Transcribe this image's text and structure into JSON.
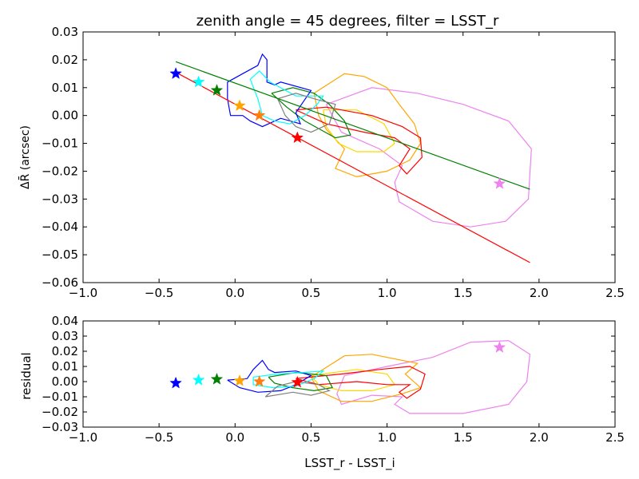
{
  "chart_data": [
    {
      "type": "line",
      "title": "zenith angle = 45 degrees, filter = LSST_r",
      "xlabel": "",
      "ylabel": "ΔR̄ (arcsec)",
      "xlim": [
        -1.0,
        2.5
      ],
      "ylim": [
        -0.06,
        0.03
      ],
      "xticks": [
        "−1.0",
        "−0.5",
        "0.0",
        "0.5",
        "1.0",
        "1.5",
        "2.0",
        "2.5"
      ],
      "xtick_values": [
        -1.0,
        -0.5,
        0.0,
        0.5,
        1.0,
        1.5,
        2.0,
        2.5
      ],
      "yticks": [
        "0.03",
        "0.02",
        "0.01",
        "0.00",
        "−0.01",
        "−0.02",
        "−0.03",
        "−0.04",
        "−0.05",
        "−0.06"
      ],
      "ytick_values": [
        0.03,
        0.02,
        0.01,
        0.0,
        -0.01,
        -0.02,
        -0.03,
        -0.04,
        -0.05,
        -0.06
      ],
      "grid": false,
      "fit_lines": [
        {
          "color": "#ff0000",
          "x": [
            -0.39,
            1.94
          ],
          "y": [
            0.0155,
            -0.0528
          ]
        },
        {
          "color": "#008000",
          "x": [
            -0.39,
            1.94
          ],
          "y": [
            0.0193,
            -0.0265
          ]
        }
      ],
      "stars": [
        {
          "color": "#0000ff",
          "x": -0.39,
          "y": 0.015
        },
        {
          "color": "#00ffff",
          "x": -0.24,
          "y": 0.012
        },
        {
          "color": "#008000",
          "x": -0.12,
          "y": 0.009
        },
        {
          "color": "#ffa500",
          "x": 0.03,
          "y": 0.0035
        },
        {
          "color": "#ff7f0e",
          "x": 0.16,
          "y": 0.0
        },
        {
          "color": "#ff0000",
          "x": 0.41,
          "y": -0.008
        },
        {
          "color": "#ee82ee",
          "x": 1.74,
          "y": -0.0245
        }
      ],
      "contours": [
        {
          "color": "#ee82ee",
          "points": [
            [
              0.6,
              0.004
            ],
            [
              0.9,
              0.01
            ],
            [
              1.2,
              0.008
            ],
            [
              1.5,
              0.004
            ],
            [
              1.8,
              -0.002
            ],
            [
              1.95,
              -0.012
            ],
            [
              1.93,
              -0.03
            ],
            [
              1.78,
              -0.038
            ],
            [
              1.55,
              -0.04
            ],
            [
              1.3,
              -0.038
            ],
            [
              1.08,
              -0.031
            ],
            [
              1.05,
              -0.024
            ],
            [
              1.1,
              -0.018
            ],
            [
              0.95,
              -0.012
            ],
            [
              0.7,
              -0.006
            ],
            [
              0.6,
              0.004
            ]
          ]
        },
        {
          "color": "#ffa500",
          "points": [
            [
              0.52,
              0.008
            ],
            [
              0.72,
              0.015
            ],
            [
              0.85,
              0.014
            ],
            [
              1.0,
              0.01
            ],
            [
              1.08,
              0.004
            ],
            [
              1.18,
              -0.003
            ],
            [
              1.22,
              -0.01
            ],
            [
              1.15,
              -0.016
            ],
            [
              1.0,
              -0.02
            ],
            [
              0.8,
              -0.022
            ],
            [
              0.66,
              -0.019
            ],
            [
              0.72,
              -0.012
            ],
            [
              0.6,
              -0.005
            ],
            [
              0.55,
              0.0
            ],
            [
              0.52,
              0.008
            ]
          ]
        },
        {
          "color": "#ffd700",
          "points": [
            [
              0.58,
              0.002
            ],
            [
              0.8,
              0.002
            ],
            [
              0.98,
              -0.003
            ],
            [
              1.05,
              -0.01
            ],
            [
              0.98,
              -0.013
            ],
            [
              0.8,
              -0.013
            ],
            [
              0.68,
              -0.01
            ],
            [
              0.6,
              -0.004
            ],
            [
              0.58,
              0.002
            ]
          ]
        },
        {
          "color": "#ff0000",
          "points": [
            [
              0.4,
              0.002
            ],
            [
              0.6,
              0.003
            ],
            [
              0.9,
              0.0
            ],
            [
              1.1,
              -0.004
            ],
            [
              1.22,
              -0.008
            ],
            [
              1.23,
              -0.015
            ],
            [
              1.13,
              -0.021
            ],
            [
              1.08,
              -0.018
            ],
            [
              1.15,
              -0.012
            ],
            [
              1.05,
              -0.008
            ],
            [
              0.85,
              -0.006
            ],
            [
              0.6,
              -0.003
            ],
            [
              0.4,
              0.002
            ]
          ]
        },
        {
          "color": "#008000",
          "points": [
            [
              0.24,
              0.008
            ],
            [
              0.38,
              0.01
            ],
            [
              0.52,
              0.008
            ],
            [
              0.62,
              0.004
            ],
            [
              0.72,
              -0.002
            ],
            [
              0.76,
              -0.007
            ],
            [
              0.66,
              -0.008
            ],
            [
              0.56,
              -0.005
            ],
            [
              0.46,
              -0.002
            ],
            [
              0.34,
              0.003
            ],
            [
              0.24,
              0.008
            ]
          ]
        },
        {
          "color": "#0000ff",
          "points": [
            [
              -0.05,
              0.012
            ],
            [
              0.05,
              0.015
            ],
            [
              0.15,
              0.018
            ],
            [
              0.18,
              0.022
            ],
            [
              0.21,
              0.02
            ],
            [
              0.21,
              0.012
            ],
            [
              0.26,
              0.011
            ],
            [
              0.3,
              0.012
            ],
            [
              0.5,
              0.009
            ],
            [
              0.45,
              0.005
            ],
            [
              0.4,
              0.001
            ],
            [
              0.43,
              -0.003
            ],
            [
              0.3,
              -0.001
            ],
            [
              0.18,
              -0.004
            ],
            [
              0.1,
              -0.002
            ],
            [
              0.05,
              0.0
            ],
            [
              -0.03,
              0.0
            ],
            [
              -0.05,
              0.006
            ],
            [
              -0.05,
              0.012
            ]
          ]
        },
        {
          "color": "#00ffff",
          "points": [
            [
              0.1,
              0.013
            ],
            [
              0.16,
              0.016
            ],
            [
              0.23,
              0.012
            ],
            [
              0.4,
              0.007
            ],
            [
              0.58,
              0.007
            ],
            [
              0.54,
              0.004
            ],
            [
              0.46,
              0.0
            ],
            [
              0.36,
              -0.003
            ],
            [
              0.26,
              -0.002
            ],
            [
              0.18,
              0.0
            ],
            [
              0.15,
              0.006
            ],
            [
              0.1,
              0.013
            ]
          ]
        },
        {
          "color": "#808080",
          "points": [
            [
              0.28,
              0.006
            ],
            [
              0.4,
              0.008
            ],
            [
              0.52,
              0.006
            ],
            [
              0.66,
              0.004
            ],
            [
              0.62,
              -0.003
            ],
            [
              0.5,
              -0.006
            ],
            [
              0.4,
              -0.004
            ],
            [
              0.33,
              0.0
            ],
            [
              0.28,
              0.006
            ]
          ]
        }
      ]
    },
    {
      "type": "line",
      "title": "",
      "xlabel": "LSST_r - LSST_i",
      "ylabel": "residual",
      "xlim": [
        -1.0,
        2.5
      ],
      "ylim": [
        -0.03,
        0.04
      ],
      "xticks": [
        "−1.0",
        "−0.5",
        "0.0",
        "0.5",
        "1.0",
        "1.5",
        "2.0",
        "2.5"
      ],
      "xtick_values": [
        -1.0,
        -0.5,
        0.0,
        0.5,
        1.0,
        1.5,
        2.0,
        2.5
      ],
      "yticks": [
        "0.04",
        "0.03",
        "0.02",
        "0.01",
        "0.00",
        "−0.01",
        "−0.02",
        "−0.03"
      ],
      "ytick_values": [
        0.04,
        0.03,
        0.02,
        0.01,
        0.0,
        -0.01,
        -0.02,
        -0.03
      ],
      "grid": false,
      "stars": [
        {
          "color": "#0000ff",
          "x": -0.39,
          "y": -0.001
        },
        {
          "color": "#00ffff",
          "x": -0.24,
          "y": 0.001
        },
        {
          "color": "#008000",
          "x": -0.12,
          "y": 0.0015
        },
        {
          "color": "#ffa500",
          "x": 0.03,
          "y": 0.0005
        },
        {
          "color": "#ff7f0e",
          "x": 0.16,
          "y": 0.0
        },
        {
          "color": "#ff0000",
          "x": 0.41,
          "y": -0.0005
        },
        {
          "color": "#ee82ee",
          "x": 1.74,
          "y": 0.0225
        }
      ],
      "contours": [
        {
          "color": "#ee82ee",
          "points": [
            [
              0.72,
              0.004
            ],
            [
              1.0,
              0.01
            ],
            [
              1.3,
              0.016
            ],
            [
              1.55,
              0.026
            ],
            [
              1.8,
              0.027
            ],
            [
              1.94,
              0.018
            ],
            [
              1.92,
              0.0
            ],
            [
              1.8,
              -0.015
            ],
            [
              1.5,
              -0.021
            ],
            [
              1.15,
              -0.021
            ],
            [
              1.05,
              -0.015
            ],
            [
              1.1,
              -0.01
            ],
            [
              0.9,
              -0.009
            ],
            [
              0.7,
              -0.015
            ],
            [
              0.67,
              -0.008
            ],
            [
              0.72,
              0.004
            ]
          ]
        },
        {
          "color": "#ffa500",
          "points": [
            [
              0.5,
              0.003
            ],
            [
              0.72,
              0.017
            ],
            [
              0.9,
              0.018
            ],
            [
              1.2,
              0.012
            ],
            [
              1.12,
              0.005
            ],
            [
              1.22,
              -0.004
            ],
            [
              1.1,
              -0.008
            ],
            [
              0.9,
              -0.013
            ],
            [
              0.7,
              -0.013
            ],
            [
              0.55,
              -0.006
            ],
            [
              0.5,
              0.003
            ]
          ]
        },
        {
          "color": "#ffd700",
          "points": [
            [
              0.5,
              0.004
            ],
            [
              0.8,
              0.008
            ],
            [
              1.0,
              0.005
            ],
            [
              1.05,
              -0.002
            ],
            [
              0.9,
              -0.006
            ],
            [
              0.7,
              -0.006
            ],
            [
              0.55,
              -0.002
            ],
            [
              0.5,
              0.004
            ]
          ]
        },
        {
          "color": "#ff0000",
          "points": [
            [
              0.4,
              0.002
            ],
            [
              0.7,
              0.005
            ],
            [
              0.95,
              0.008
            ],
            [
              1.15,
              0.01
            ],
            [
              1.25,
              0.005
            ],
            [
              1.22,
              -0.005
            ],
            [
              1.13,
              -0.011
            ],
            [
              1.08,
              -0.007
            ],
            [
              1.15,
              -0.002
            ],
            [
              1.0,
              -0.002
            ],
            [
              0.8,
              0.0
            ],
            [
              0.55,
              -0.002
            ],
            [
              0.4,
              0.002
            ]
          ]
        },
        {
          "color": "#008000",
          "points": [
            [
              0.22,
              0.003
            ],
            [
              0.4,
              0.006
            ],
            [
              0.6,
              0.004
            ],
            [
              0.64,
              -0.004
            ],
            [
              0.52,
              -0.006
            ],
            [
              0.38,
              -0.004
            ],
            [
              0.26,
              -0.001
            ],
            [
              0.22,
              0.003
            ]
          ]
        },
        {
          "color": "#0000ff",
          "points": [
            [
              -0.05,
              0.001
            ],
            [
              0.08,
              0.002
            ],
            [
              0.12,
              0.008
            ],
            [
              0.18,
              0.014
            ],
            [
              0.22,
              0.008
            ],
            [
              0.26,
              0.006
            ],
            [
              0.4,
              0.007
            ],
            [
              0.5,
              0.004
            ],
            [
              0.4,
              -0.002
            ],
            [
              0.3,
              -0.006
            ],
            [
              0.15,
              -0.007
            ],
            [
              0.03,
              -0.004
            ],
            [
              -0.05,
              0.001
            ]
          ]
        },
        {
          "color": "#00ffff",
          "points": [
            [
              0.12,
              0.003
            ],
            [
              0.28,
              0.005
            ],
            [
              0.45,
              0.006
            ],
            [
              0.58,
              0.007
            ],
            [
              0.52,
              0.002
            ],
            [
              0.4,
              -0.003
            ],
            [
              0.25,
              -0.004
            ],
            [
              0.12,
              -0.002
            ],
            [
              0.12,
              0.003
            ]
          ]
        },
        {
          "color": "#808080",
          "points": [
            [
              0.2,
              -0.01
            ],
            [
              0.28,
              -0.003
            ],
            [
              0.4,
              0.0
            ],
            [
              0.55,
              -0.002
            ],
            [
              0.62,
              -0.006
            ],
            [
              0.5,
              -0.009
            ],
            [
              0.38,
              -0.007
            ],
            [
              0.2,
              -0.01
            ]
          ]
        }
      ]
    }
  ]
}
